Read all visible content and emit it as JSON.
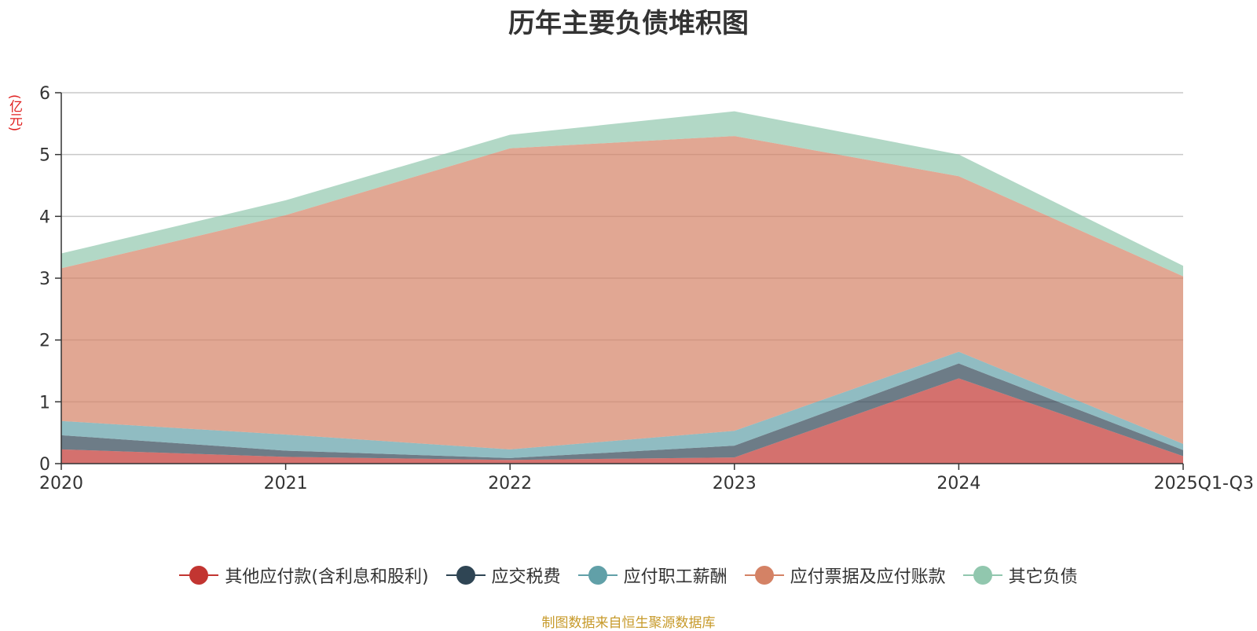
{
  "chart_data": {
    "type": "area",
    "stacked": true,
    "title": "历年主要负债堆积图",
    "ylabel": "(亿元)",
    "categories": [
      "2020",
      "2021",
      "2022",
      "2023",
      "2024",
      "2025Q1-Q3"
    ],
    "ylim": [
      0,
      6
    ],
    "yticks": [
      0,
      1,
      2,
      3,
      4,
      5,
      6
    ],
    "grid": true,
    "legend_position": "bottom",
    "series": [
      {
        "name": "其他应付款(含利息和股利)",
        "color": "#c23531",
        "values": [
          0.23,
          0.11,
          0.06,
          0.1,
          1.38,
          0.12
        ]
      },
      {
        "name": "应交税费",
        "color": "#2f4554",
        "values": [
          0.23,
          0.1,
          0.03,
          0.19,
          0.24,
          0.1
        ]
      },
      {
        "name": "应付职工薪酬",
        "color": "#61a0a8",
        "values": [
          0.23,
          0.26,
          0.14,
          0.24,
          0.19,
          0.1
        ]
      },
      {
        "name": "应付票据及应付账款",
        "color": "#d48265",
        "values": [
          2.47,
          3.55,
          4.87,
          4.77,
          2.84,
          2.71
        ]
      },
      {
        "name": "其它负债",
        "color": "#91c7ae",
        "values": [
          0.24,
          0.24,
          0.22,
          0.4,
          0.35,
          0.17
        ]
      }
    ]
  },
  "source_note": "制图数据来自恒生聚源数据库"
}
